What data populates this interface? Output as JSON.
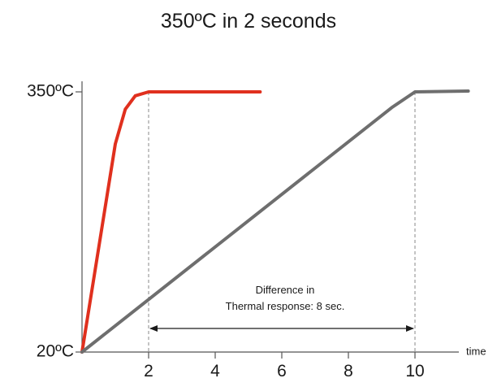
{
  "chart_data": {
    "type": "line",
    "title": "350ºC in 2 seconds",
    "xlabel": "time",
    "ylabel": "",
    "xlim": [
      0,
      11
    ],
    "ylim": [
      20,
      350
    ],
    "x_ticks": [
      2,
      4,
      6,
      8,
      10
    ],
    "y_ticks": [
      {
        "value": 350,
        "label": "350ºC"
      },
      {
        "value": 20,
        "label": "20ºC"
      }
    ],
    "grid": false,
    "legend": "none",
    "series": [
      {
        "color": "#e0301e",
        "points": [
          [
            0,
            20
          ],
          [
            1.0,
            284
          ],
          [
            1.3,
            328
          ],
          [
            1.6,
            345
          ],
          [
            2.0,
            350
          ],
          [
            5.35,
            350
          ]
        ]
      },
      {
        "color": "#6e6e6e",
        "points": [
          [
            0,
            20
          ],
          [
            9.3,
            330
          ],
          [
            10.0,
            350
          ],
          [
            11.6,
            351
          ]
        ]
      }
    ],
    "reference_lines": [
      2,
      10
    ],
    "annotation": {
      "line1": "Difference in",
      "line2": "Thermal response: 8 sec.",
      "from": 2,
      "to": 10
    }
  }
}
